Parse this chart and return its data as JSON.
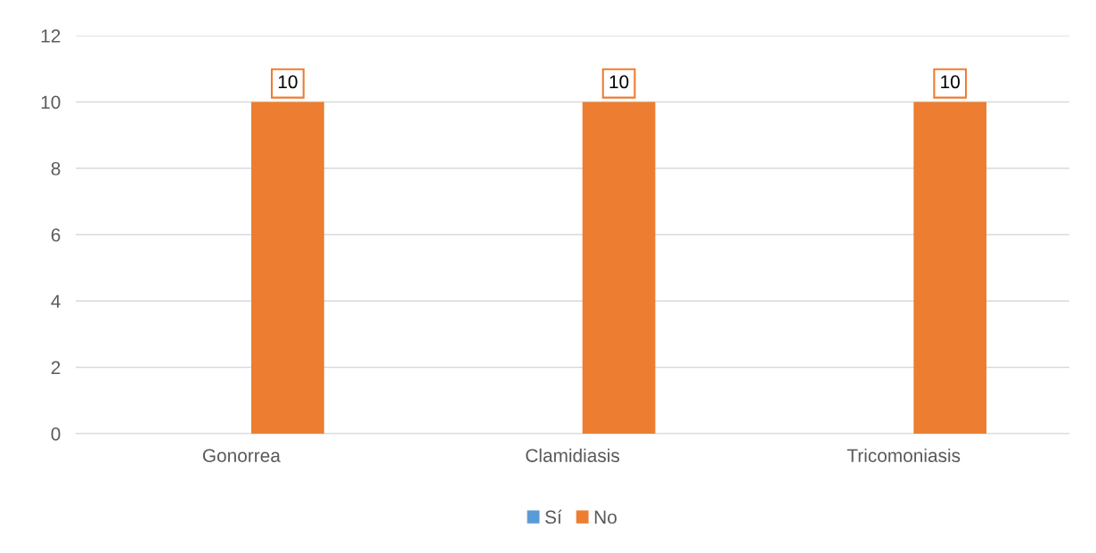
{
  "chart_data": {
    "type": "bar",
    "categories": [
      "Gonorrea",
      "Clamidiasis",
      "Tricomoniasis"
    ],
    "series": [
      {
        "name": "Sí",
        "color": "#5b9bd5",
        "values": [
          0,
          0,
          0
        ],
        "value_labels": [
          null,
          null,
          null
        ]
      },
      {
        "name": "No",
        "color": "#ed7d31",
        "values": [
          10,
          10,
          10
        ],
        "value_labels": [
          "10",
          "10",
          "10"
        ]
      }
    ],
    "ylim": [
      0,
      12
    ],
    "yticks": [
      0,
      2,
      4,
      6,
      8,
      10,
      12
    ],
    "grid": "y",
    "legend": "bottom"
  }
}
